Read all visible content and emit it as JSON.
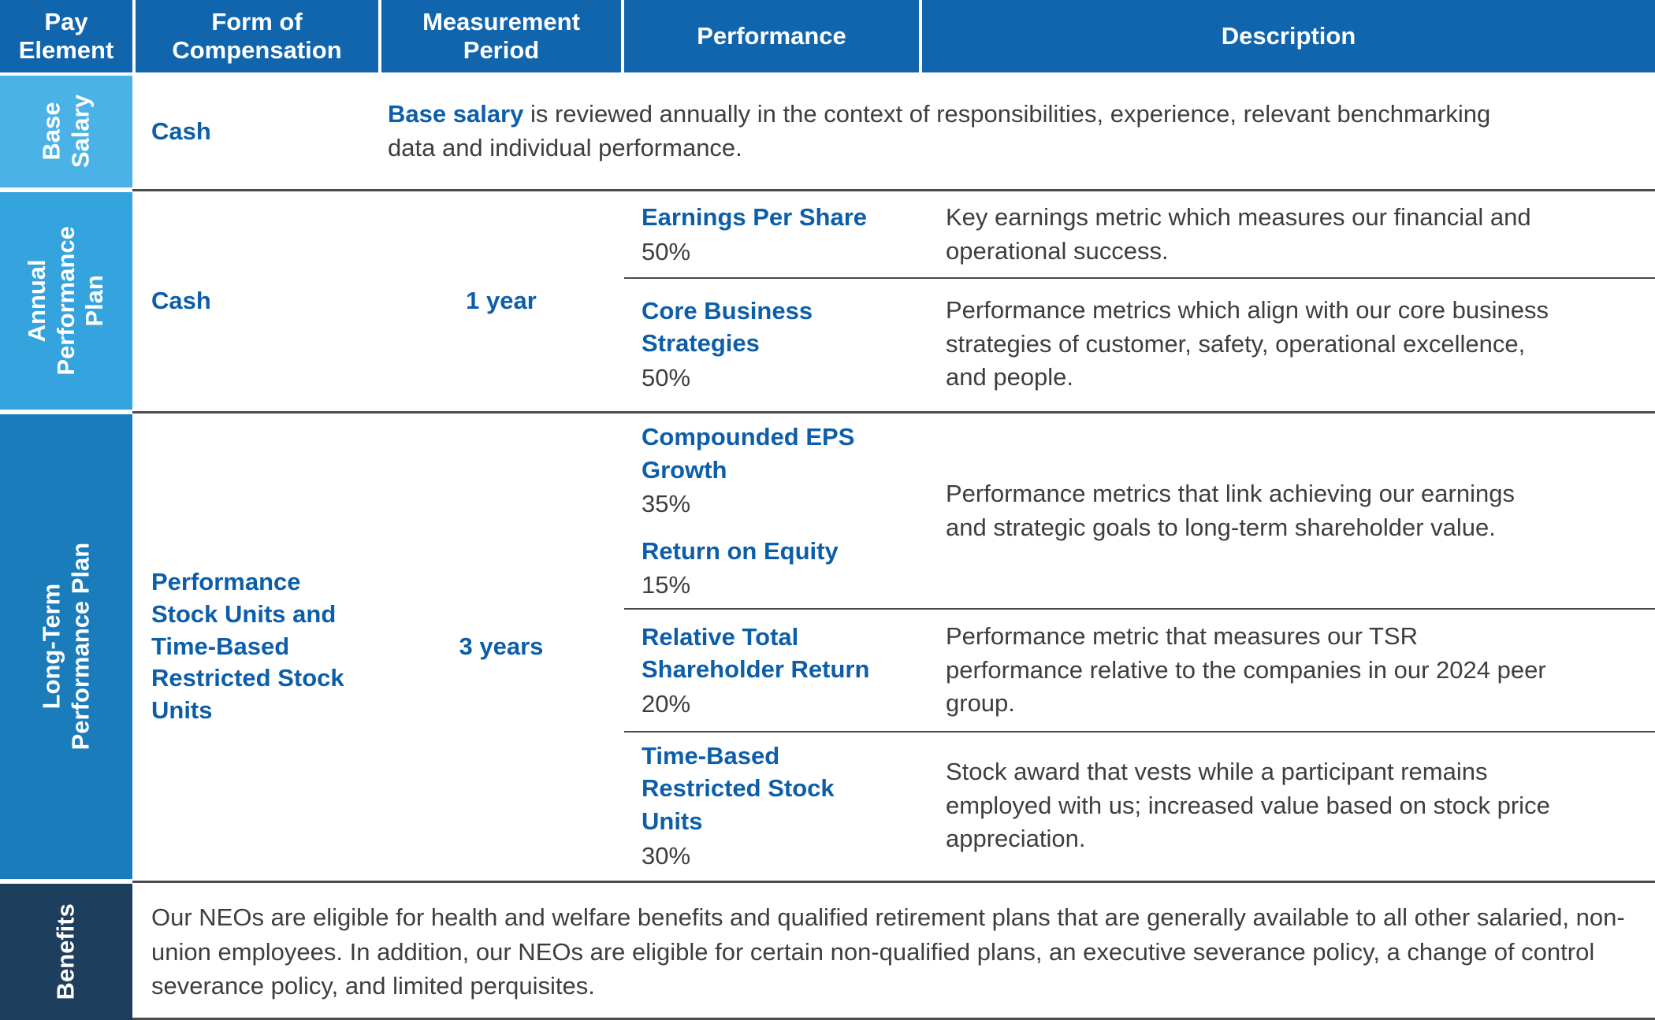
{
  "colors": {
    "header_bg": "#1065AD",
    "base_salary_bg": "#4AB2E7",
    "annual_bg": "#34A3DE",
    "long_term_bg": "#1B7CBC",
    "benefits_bg": "#1E3E5E",
    "accent_text": "#0D5EA9",
    "body_text": "#3D3E40",
    "divider": "#4A4B4D"
  },
  "header": {
    "columns": [
      "Pay Element",
      "Form of Compensation",
      "Measurement Period",
      "Performance",
      "Description"
    ]
  },
  "rows": {
    "base_salary": {
      "label": "Base Salary",
      "form": "Cash",
      "description_lead": "Base salary",
      "description_rest": " is reviewed annually in the context of responsibilities, experience, relevant benchmarking data and individual performance."
    },
    "annual": {
      "label": "Annual Performance Plan",
      "form": "Cash",
      "period": "1 year",
      "subrows": [
        {
          "metrics": [
            {
              "name": "Earnings Per Share",
              "pct": "50%"
            }
          ],
          "description": "Key earnings metric which measures our financial and operational success."
        },
        {
          "metrics": [
            {
              "name": "Core Business Strategies",
              "pct": "50%"
            }
          ],
          "description": "Performance metrics which align with our core business strategies of customer, safety, operational excellence, and people."
        }
      ]
    },
    "long_term": {
      "label": "Long-Term Performance Plan",
      "form": "Performance Stock Units and Time-Based Restricted Stock Units",
      "period": "3 years",
      "subrows": [
        {
          "metrics": [
            {
              "name": "Compounded EPS Growth",
              "pct": "35%"
            },
            {
              "name": "Return on Equity",
              "pct": "15%"
            }
          ],
          "description": "Performance metrics that link achieving our earnings and strategic goals to long-term shareholder value."
        },
        {
          "metrics": [
            {
              "name": "Relative Total Shareholder Return",
              "pct": "20%"
            }
          ],
          "description": "Performance metric that measures our TSR performance relative to the companies in our 2024 peer group."
        },
        {
          "metrics": [
            {
              "name": "Time-Based Restricted Stock Units",
              "pct": "30%"
            }
          ],
          "description": "Stock award that vests while a participant remains employed with us; increased value based on stock price appreciation."
        }
      ]
    },
    "benefits": {
      "label": "Benefits",
      "description": "Our NEOs are eligible for health and welfare benefits and qualified retirement plans that are generally available to all other salaried, non-union employees. In addition, our NEOs are eligible for certain non-qualified plans, an executive severance policy, a change of control severance policy, and limited perquisites."
    }
  }
}
